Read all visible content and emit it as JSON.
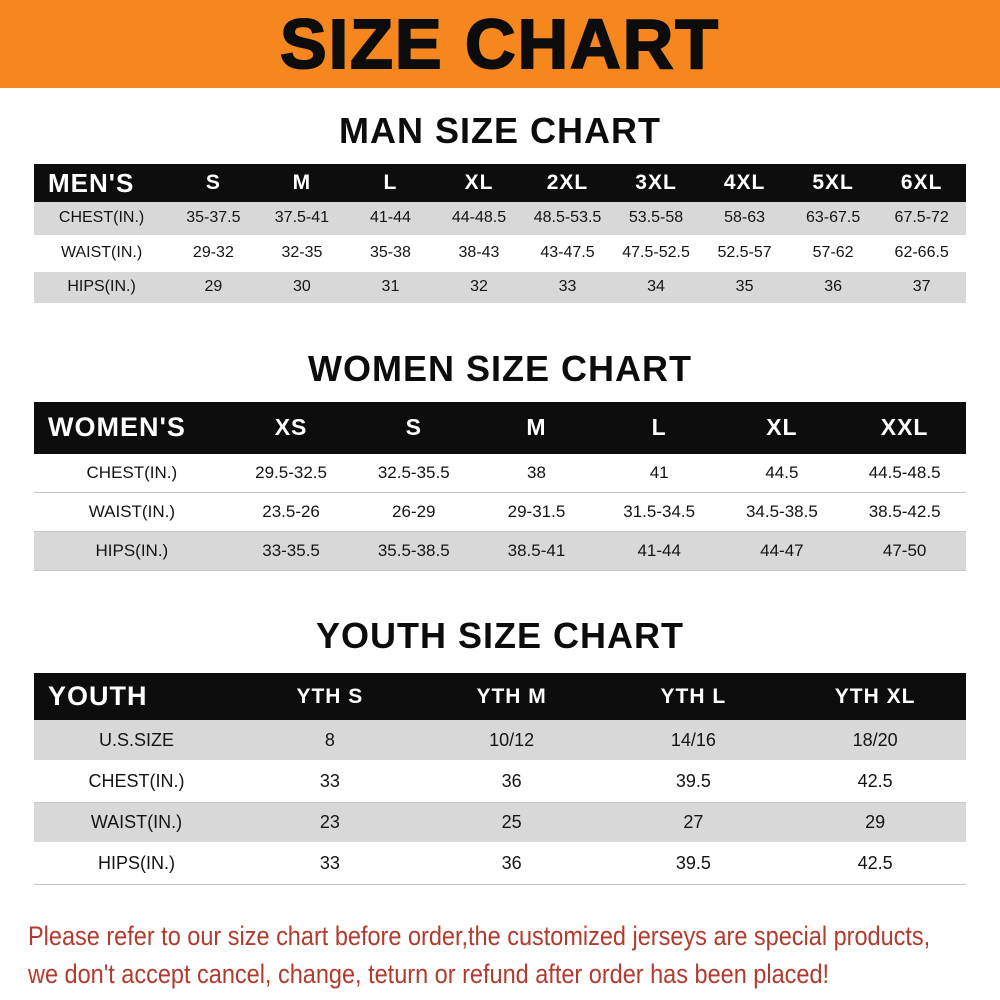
{
  "banner": {
    "title": "SIZE CHART"
  },
  "man": {
    "heading": "MAN SIZE CHART",
    "table": {
      "header": [
        "MEN'S",
        "S",
        "M",
        "L",
        "XL",
        "2XL",
        "3XL",
        "4XL",
        "5XL",
        "6XL"
      ],
      "rows": [
        {
          "label": "CHEST(IN.)",
          "values": [
            "35-37.5",
            "37.5-41",
            "41-44",
            "44-48.5",
            "48.5-53.5",
            "53.5-58",
            "58-63",
            "63-67.5",
            "67.5-72"
          ]
        },
        {
          "label": "WAIST(IN.)",
          "values": [
            "29-32",
            "32-35",
            "35-38",
            "38-43",
            "43-47.5",
            "47.5-52.5",
            "52.5-57",
            "57-62",
            "62-66.5"
          ]
        },
        {
          "label": "HIPS(IN.)",
          "values": [
            "29",
            "30",
            "31",
            "32",
            "33",
            "34",
            "35",
            "36",
            "37"
          ]
        }
      ]
    }
  },
  "women": {
    "heading": "WOMEN SIZE CHART",
    "table": {
      "header": [
        "WOMEN'S",
        "XS",
        "S",
        "M",
        "L",
        "XL",
        "XXL"
      ],
      "rows": [
        {
          "label": "CHEST(IN.)",
          "values": [
            "29.5-32.5",
            "32.5-35.5",
            "38",
            "41",
            "44.5",
            "44.5-48.5"
          ]
        },
        {
          "label": "WAIST(IN.)",
          "values": [
            "23.5-26",
            "26-29",
            "29-31.5",
            "31.5-34.5",
            "34.5-38.5",
            "38.5-42.5"
          ]
        },
        {
          "label": "HIPS(IN.)",
          "values": [
            "33-35.5",
            "35.5-38.5",
            "38.5-41",
            "41-44",
            "44-47",
            "47-50"
          ]
        }
      ]
    }
  },
  "youth": {
    "heading": "YOUTH SIZE CHART",
    "table": {
      "header": [
        "YOUTH",
        "YTH S",
        "YTH M",
        "YTH L",
        "YTH XL"
      ],
      "rows": [
        {
          "label": "U.S.SIZE",
          "values": [
            "8",
            "10/12",
            "14/16",
            "18/20"
          ]
        },
        {
          "label": "CHEST(IN.)",
          "values": [
            "33",
            "36",
            "39.5",
            "42.5"
          ]
        },
        {
          "label": "WAIST(IN.)",
          "values": [
            "23",
            "25",
            "27",
            "29"
          ]
        },
        {
          "label": "HIPS(IN.)",
          "values": [
            "33",
            "36",
            "39.5",
            "42.5"
          ]
        }
      ]
    }
  },
  "footer": {
    "line1": "Please refer to our size chart before order,the customized jerseys are special products,",
    "line2": "we don't accept cancel, change, teturn or refund after order has been placed!"
  },
  "colors": {
    "banner_bg": "#f6871f",
    "header_bg": "#0d0d0d",
    "shaded_row": "#d8d8d8",
    "footer_text": "#b23b2e"
  }
}
